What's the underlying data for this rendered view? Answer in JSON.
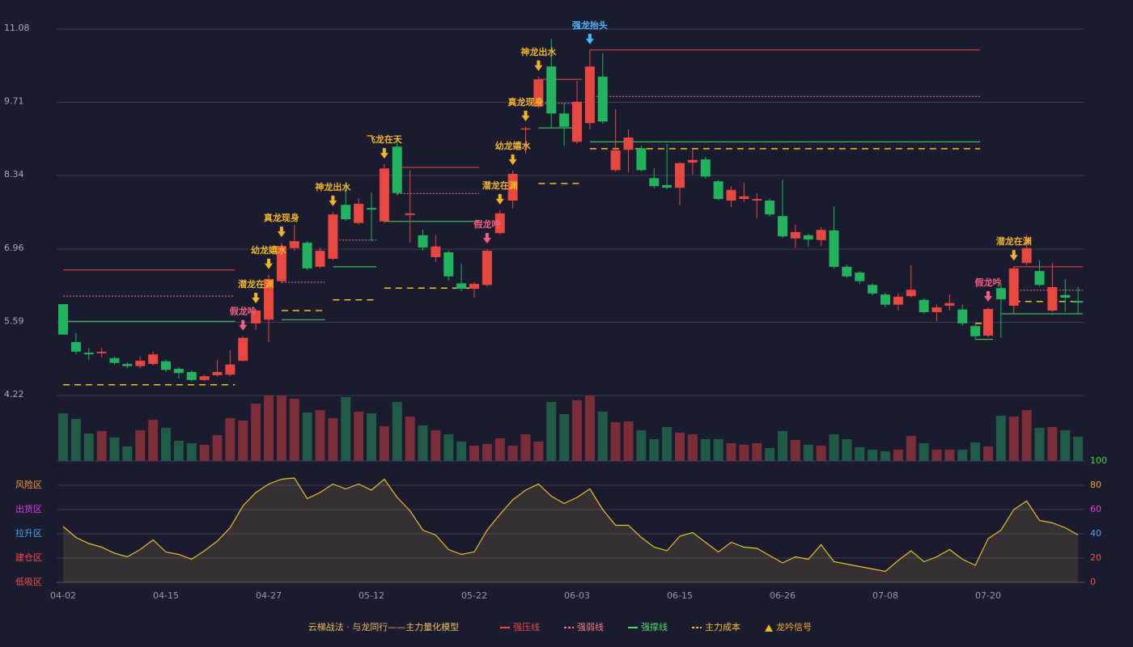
{
  "chart_data": {
    "type": "candlestick",
    "categories": [
      "04-02",
      null,
      null,
      null,
      null,
      null,
      null,
      null,
      "04-15",
      null,
      null,
      null,
      null,
      null,
      null,
      null,
      "04-27",
      null,
      null,
      null,
      null,
      null,
      null,
      null,
      "05-12",
      null,
      null,
      null,
      null,
      null,
      null,
      null,
      "05-22",
      null,
      null,
      null,
      null,
      null,
      null,
      null,
      "06-03",
      null,
      null,
      null,
      null,
      null,
      null,
      null,
      "06-15",
      null,
      null,
      null,
      null,
      null,
      null,
      null,
      "06-26",
      null,
      null,
      null,
      null,
      null,
      null,
      null,
      "07-08",
      null,
      null,
      null,
      null,
      null,
      null,
      null,
      "07-20",
      null,
      null,
      null,
      null,
      null,
      null,
      null
    ],
    "open": [
      5.93,
      5.22,
      5.02,
      5.01,
      4.92,
      4.81,
      4.77,
      4.81,
      4.86,
      4.72,
      4.66,
      4.51,
      4.6,
      4.61,
      4.87,
      5.57,
      5.64,
      6.36,
      6.98,
      7.08,
      6.63,
      6.78,
      7.79,
      7.45,
      7.73,
      7.48,
      8.88,
      7.6,
      7.22,
      6.81,
      6.9,
      6.32,
      6.22,
      6.29,
      7.26,
      7.87,
      9.2,
      9.63,
      10.38,
      9.5,
      8.97,
      9.32,
      10.19,
      8.44,
      8.82,
      8.85,
      8.29,
      8.16,
      8.11,
      8.58,
      8.64,
      8.23,
      7.87,
      7.9,
      7.87,
      7.87,
      7.58,
      7.16,
      7.22,
      7.13,
      7.31,
      6.63,
      6.52,
      6.29,
      6.11,
      5.92,
      6.08,
      6.01,
      5.78,
      5.9,
      5.83,
      5.52,
      5.34,
      6.23,
      5.9,
      6.7,
      6.55,
      5.81,
      6.1,
      5.99
    ],
    "close": [
      5.36,
      5.04,
      4.99,
      5.04,
      4.83,
      4.77,
      4.87,
      4.99,
      4.7,
      4.64,
      4.51,
      4.58,
      4.66,
      4.8,
      5.3,
      5.81,
      6.4,
      7.02,
      7.11,
      6.6,
      6.93,
      7.61,
      7.52,
      7.81,
      7.7,
      8.47,
      8.01,
      7.63,
      6.99,
      7.01,
      6.45,
      6.22,
      6.31,
      6.93,
      7.63,
      8.37,
      9.22,
      10.14,
      9.5,
      9.25,
      9.72,
      10.38,
      9.35,
      8.81,
      9.05,
      8.44,
      8.14,
      8.11,
      8.57,
      8.63,
      8.32,
      7.9,
      8.07,
      7.95,
      7.9,
      7.61,
      7.2,
      7.28,
      7.14,
      7.32,
      6.63,
      6.45,
      6.36,
      6.13,
      5.92,
      6.07,
      6.2,
      5.78,
      5.87,
      5.95,
      5.57,
      5.33,
      5.84,
      6.02,
      6.6,
      6.98,
      6.29,
      6.25,
      6.05,
      5.96
    ],
    "high": [
      5.93,
      5.39,
      5.11,
      5.11,
      4.95,
      4.84,
      4.95,
      5.05,
      4.89,
      4.75,
      4.69,
      4.61,
      4.89,
      5.07,
      5.33,
      5.84,
      6.48,
      7.08,
      7.42,
      7.11,
      6.99,
      7.66,
      8.2,
      7.91,
      8.02,
      8.55,
      9.05,
      8.44,
      7.32,
      7.23,
      6.93,
      6.69,
      6.34,
      6.96,
      7.69,
      8.43,
      9.25,
      10.19,
      10.9,
      9.69,
      10.11,
      10.69,
      10.63,
      9.58,
      9.2,
      8.9,
      8.47,
      8.93,
      8.6,
      8.84,
      8.69,
      8.26,
      8.14,
      8.2,
      8.0,
      7.91,
      8.26,
      7.42,
      7.25,
      7.37,
      7.76,
      6.67,
      6.55,
      6.32,
      6.14,
      6.14,
      6.66,
      6.04,
      5.92,
      6.11,
      5.92,
      5.57,
      5.87,
      6.32,
      6.64,
      7.23,
      6.75,
      6.7,
      6.4,
      6.25
    ],
    "low": [
      5.36,
      4.99,
      4.89,
      4.93,
      4.8,
      4.73,
      4.73,
      4.78,
      4.66,
      4.54,
      4.48,
      4.49,
      4.57,
      4.58,
      4.86,
      5.45,
      5.22,
      6.32,
      6.93,
      6.57,
      6.6,
      6.75,
      7.49,
      7.42,
      7.11,
      7.45,
      7.96,
      7.08,
      6.93,
      6.72,
      6.37,
      6.17,
      6.05,
      6.26,
      7.23,
      7.72,
      8.75,
      9.6,
      9.23,
      8.9,
      8.93,
      9.2,
      9.31,
      8.41,
      8.4,
      8.41,
      8.1,
      8.08,
      7.78,
      8.35,
      8.28,
      7.87,
      7.75,
      7.84,
      7.54,
      7.57,
      7.17,
      6.98,
      7.01,
      7.02,
      6.6,
      6.42,
      6.31,
      6.1,
      5.87,
      5.81,
      6.05,
      5.75,
      5.61,
      5.81,
      5.52,
      5.28,
      5.31,
      5.3,
      5.76,
      6.66,
      6.26,
      5.78,
      5.79,
      5.76
    ],
    "volume": [
      59,
      52,
      34,
      37,
      29,
      18,
      38,
      51,
      41,
      25,
      22,
      20,
      32,
      53,
      50,
      71,
      81,
      81,
      77,
      60,
      63,
      53,
      79,
      61,
      59,
      43,
      73,
      55,
      44,
      38,
      33,
      24,
      19,
      21,
      28,
      19,
      33,
      24,
      73,
      58,
      75,
      81,
      61,
      48,
      49,
      38,
      27,
      42,
      35,
      33,
      27,
      27,
      22,
      20,
      22,
      16,
      37,
      26,
      20,
      19,
      33,
      27,
      17,
      14,
      12,
      14,
      31,
      22,
      14,
      14,
      14,
      23,
      18,
      56,
      55,
      63,
      41,
      42,
      38,
      30
    ],
    "ylim": [
      4.22,
      11.08
    ],
    "yticks": [
      4.22,
      5.59,
      6.96,
      8.34,
      9.71,
      11.08
    ],
    "grid": true,
    "up_color": "#e8473f",
    "down_color": "#22b35e",
    "oscillator": {
      "values": [
        46,
        37,
        32,
        29,
        24,
        21,
        27,
        35,
        25,
        23,
        19,
        26,
        34,
        45,
        63,
        74,
        81,
        85,
        86,
        69,
        74,
        81,
        77,
        81,
        76,
        85,
        70,
        59,
        43,
        39,
        27,
        23,
        25,
        43,
        56,
        68,
        76,
        81,
        71,
        65,
        70,
        77,
        60,
        47,
        47,
        37,
        29,
        26,
        38,
        41,
        33,
        25,
        33,
        29,
        28,
        22,
        16,
        21,
        19,
        31,
        17,
        15,
        13,
        11,
        9,
        18,
        26,
        17,
        21,
        27,
        19,
        14,
        36,
        43,
        60,
        67,
        51,
        49,
        45,
        39
      ],
      "color": "#e6c229",
      "ylim": [
        0,
        100
      ],
      "yticks": [
        0,
        20,
        40,
        60,
        80,
        100
      ],
      "tick_colors": [
        "#ff4d4d",
        "#ff4d4d",
        "#4da6ff",
        "#e040e0",
        "#ff9a2e",
        "#3ddc3d"
      ],
      "zones": [
        {
          "label": "风险区",
          "value": 80,
          "color": "#ff9a2e"
        },
        {
          "label": "出货区",
          "value": 60,
          "color": "#e040e0"
        },
        {
          "label": "拉升区",
          "value": 40,
          "color": "#4da6ff"
        },
        {
          "label": "建仓区",
          "value": 20,
          "color": "#ff4d4d"
        },
        {
          "label": "低吸区",
          "value": 0,
          "color": "#ff4d4d"
        }
      ]
    },
    "levels": [
      {
        "name": "强压线",
        "color": "#e84a4a",
        "dash": "solid",
        "segments": [
          {
            "value": 6.57,
            "from": 0,
            "to": 13
          },
          {
            "value": 8.49,
            "from": 26,
            "to": 32
          },
          {
            "value": 10.14,
            "from": 37,
            "to": 40
          },
          {
            "value": 10.69,
            "from": 41,
            "to": 71
          },
          {
            "value": 6.63,
            "from": 74,
            "to": 79
          }
        ]
      },
      {
        "name": "强弱线",
        "color": "#f07a90",
        "dash": "dotted",
        "segments": [
          {
            "value": 6.08,
            "from": 0,
            "to": 13
          },
          {
            "value": 6.34,
            "from": 17,
            "to": 20
          },
          {
            "value": 7.13,
            "from": 21,
            "to": 24
          },
          {
            "value": 8.0,
            "from": 26,
            "to": 32
          },
          {
            "value": 9.69,
            "from": 37,
            "to": 40
          },
          {
            "value": 9.82,
            "from": 41,
            "to": 71
          },
          {
            "value": 6.19,
            "from": 74,
            "to": 79
          }
        ]
      },
      {
        "name": "强撑线",
        "color": "#4ddc6a",
        "dash": "solid",
        "segments": [
          {
            "value": 5.61,
            "from": 0,
            "to": 13
          },
          {
            "value": 5.64,
            "from": 17,
            "to": 20
          },
          {
            "value": 6.63,
            "from": 21,
            "to": 24
          },
          {
            "value": 7.48,
            "from": 25,
            "to": 32
          },
          {
            "value": 9.23,
            "from": 37,
            "to": 40
          },
          {
            "value": 8.97,
            "from": 41,
            "to": 71
          },
          {
            "value": 5.27,
            "from": 71,
            "to": 72
          },
          {
            "value": 5.75,
            "from": 73,
            "to": 79
          }
        ]
      },
      {
        "name": "主力成本",
        "color": "#f0c419",
        "dash": "dashed",
        "segments": [
          {
            "value": 4.42,
            "from": 0,
            "to": 13
          },
          {
            "value": 5.81,
            "from": 17,
            "to": 20
          },
          {
            "value": 6.01,
            "from": 21,
            "to": 24
          },
          {
            "value": 6.23,
            "from": 25,
            "to": 32
          },
          {
            "value": 8.19,
            "from": 37,
            "to": 40
          },
          {
            "value": 8.84,
            "from": 41,
            "to": 71
          },
          {
            "value": 5.57,
            "from": 71,
            "to": 72
          },
          {
            "value": 5.98,
            "from": 74,
            "to": 79
          }
        ]
      }
    ],
    "signals": [
      {
        "index": 14,
        "label": "假龙吟",
        "color": "#f06080"
      },
      {
        "index": 15,
        "label": "潜龙在渊",
        "color": "#f0b429"
      },
      {
        "index": 16,
        "label": "幼龙嬉水",
        "color": "#f0b429"
      },
      {
        "index": 17,
        "label": "真龙现身",
        "color": "#f0b429"
      },
      {
        "index": 21,
        "label": "神龙出水",
        "color": "#f0b429"
      },
      {
        "index": 25,
        "label": "飞龙在天",
        "color": "#f0b429"
      },
      {
        "index": 33,
        "label": "假龙吟",
        "color": "#f06080"
      },
      {
        "index": 34,
        "label": "潜龙在渊",
        "color": "#f0b429"
      },
      {
        "index": 35,
        "label": "幼龙嬉水",
        "color": "#f0b429"
      },
      {
        "index": 36,
        "label": "真龙现身",
        "color": "#f0b429"
      },
      {
        "index": 37,
        "label": "神龙出水",
        "color": "#f0b429"
      },
      {
        "index": 41,
        "label": "强龙抬头",
        "color": "#4db8ff"
      },
      {
        "index": 72,
        "label": "假龙吟",
        "color": "#f06080"
      },
      {
        "index": 74,
        "label": "潜龙在渊",
        "color": "#f0b429"
      }
    ],
    "legend_title": "云梯战法 · 与龙同行——主力量化模型",
    "signal_legend": {
      "name": "龙吟信号",
      "color": "#f0b429"
    }
  }
}
